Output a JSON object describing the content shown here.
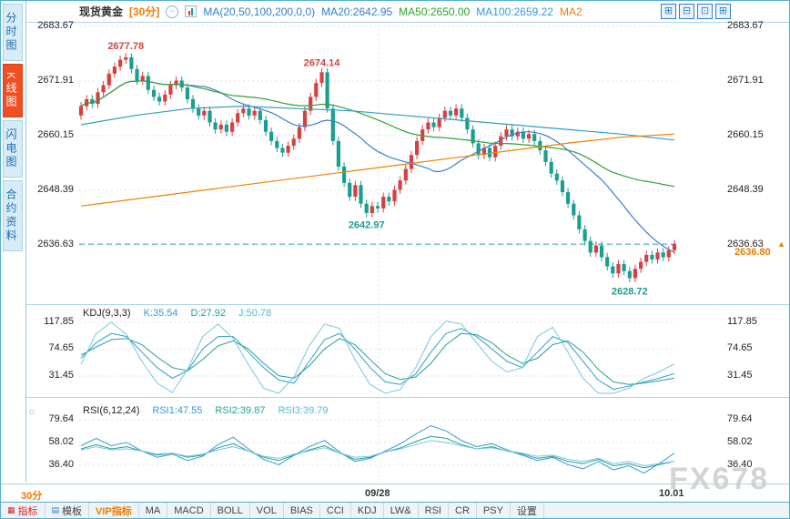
{
  "colors": {
    "up": "#d84040",
    "down": "#1b9e92",
    "ma20": "#3a7fd0",
    "ma50": "#35a035",
    "ma100": "#2e9fc0",
    "ma200": "#ef8200",
    "kdj_k": "#2f9bd6",
    "kdj_d": "#23a08e",
    "kdj_j": "#79c6de",
    "rsi1": "#2f9bd6",
    "rsi2": "#23a08e",
    "rsi3": "#79c6de",
    "current": "#f07c00"
  },
  "sidebar": {
    "items": [
      {
        "label": "分时图",
        "active": false
      },
      {
        "label": "K线图",
        "active": true
      },
      {
        "label": "闪电图",
        "active": false
      },
      {
        "label": "合约资料",
        "active": false
      }
    ]
  },
  "header": {
    "title": "现货黄金",
    "timeframe": "[30分]",
    "ma_formula": "MA(20,50,100,200,0,0)",
    "ma20": "MA20:2642.95",
    "ma50": "MA50:2650.00",
    "ma100": "MA100:2659.22",
    "ma200": "MA2"
  },
  "main_axis": {
    "left": [
      "2683.67",
      "2671.91",
      "2660.15",
      "2648.39",
      "2636.63"
    ],
    "right": [
      "2683.67",
      "2671.91",
      "2660.15",
      "2648.39",
      "2636.63"
    ],
    "current_price": "2636.80",
    "current_arrow": "▲"
  },
  "kdj_panel": {
    "title": "KDJ(9,3,3)",
    "k": "K:35.54",
    "d": "D:27.92",
    "j": "J:50.78",
    "axis": [
      "117.85",
      "74.65",
      "31.45"
    ]
  },
  "rsi_panel": {
    "title": "RSI(6,12,24)",
    "rsi1": "RSI1:47.55",
    "rsi2": "RSI2:39.87",
    "rsi3": "RSI3:39.79",
    "axis": [
      "79.64",
      "58.02",
      "36.40"
    ]
  },
  "xaxis": {
    "timeframe_badge": "30分",
    "date1": "09/28",
    "date2": "10.01"
  },
  "toolbar": {
    "items": [
      "指标",
      "模板",
      "VIP指标",
      "MA",
      "MACD",
      "BOLL",
      "VOL",
      "BIAS",
      "CCI",
      "KDJ",
      "LW&",
      "RSI",
      "CR",
      "PSY",
      "设置"
    ]
  },
  "watermark": "FX678",
  "chart_data": {
    "type": "candlestick",
    "symbol": "现货黄金",
    "interval": "30分",
    "x_labels": [
      "09/28",
      "10.01"
    ],
    "price_gridlines": [
      2683.67,
      2671.91,
      2660.15,
      2648.39,
      2636.63
    ],
    "current_price": 2636.8,
    "candles": {
      "open_first": 2664.5,
      "wick": 0.9,
      "closes": [
        2666.5,
        2668,
        2667,
        2669.5,
        2671,
        2673.5,
        2675,
        2676.5,
        2677,
        2674.5,
        2672,
        2673,
        2670,
        2668.5,
        2667.5,
        2669,
        2671,
        2672,
        2670.5,
        2668,
        2666,
        2664.5,
        2665.5,
        2663,
        2661.5,
        2662.5,
        2661,
        2663,
        2665,
        2666,
        2664.5,
        2665.5,
        2663.5,
        2661,
        2659,
        2657.5,
        2656.5,
        2658,
        2659.5,
        2662,
        2665.5,
        2668.5,
        2671.5,
        2673.8,
        2666,
        2659,
        2653.5,
        2650,
        2647,
        2649.5,
        2645.5,
        2643.5,
        2645,
        2644.5,
        2647,
        2646,
        2648.5,
        2650.5,
        2653,
        2656,
        2659,
        2661.5,
        2663,
        2662,
        2664,
        2665.5,
        2664.5,
        2666,
        2664,
        2661.5,
        2658.5,
        2656,
        2657.5,
        2655.5,
        2658,
        2660,
        2661.5,
        2660,
        2661,
        2659.5,
        2660.5,
        2659,
        2657,
        2654.5,
        2652,
        2650.5,
        2648,
        2645.5,
        2643,
        2640,
        2637.5,
        2635,
        2636.5,
        2634,
        2632,
        2630.5,
        2632.5,
        2631,
        2629.5,
        2631.5,
        2633,
        2634.5,
        2633.5,
        2635,
        2634,
        2635.5,
        2636.8
      ]
    },
    "annotations": [
      {
        "index": 8,
        "price": 2677.78,
        "text": "2677.78",
        "pos": "above",
        "color": "#d84040"
      },
      {
        "index": 43,
        "price": 2674.14,
        "text": "2674.14",
        "pos": "above",
        "color": "#d84040"
      },
      {
        "index": 51,
        "price": 2642.97,
        "text": "2642.97",
        "pos": "below",
        "color": "#1b9e92"
      },
      {
        "index": 98,
        "price": 2628.72,
        "text": "2628.72",
        "pos": "below",
        "color": "#1b9e92"
      }
    ],
    "ma100_points": [
      2662.5,
      2664.5,
      2666,
      2666.5,
      2666,
      2665.5,
      2664.5,
      2663.5,
      2662.5,
      2661.5,
      2660.5,
      2659.2
    ],
    "ma200_points": [
      2645,
      2646.5,
      2648,
      2649.5,
      2651,
      2652.5,
      2654,
      2655.5,
      2657,
      2658.5,
      2659.8,
      2660.5
    ],
    "kdj": {
      "gridlines": [
        117.85,
        74.65,
        31.45
      ],
      "k": [
        60,
        85,
        100,
        95,
        70,
        45,
        28,
        40,
        75,
        95,
        95,
        70,
        45,
        25,
        20,
        55,
        90,
        100,
        75,
        45,
        22,
        18,
        35,
        70,
        100,
        108,
        95,
        75,
        55,
        45,
        70,
        95,
        85,
        55,
        25,
        10,
        15,
        22,
        28,
        35.5
      ],
      "d": [
        65,
        78,
        90,
        92,
        82,
        62,
        45,
        40,
        58,
        80,
        88,
        75,
        52,
        32,
        28,
        48,
        75,
        92,
        82,
        58,
        35,
        26,
        30,
        52,
        82,
        100,
        98,
        85,
        65,
        52,
        60,
        82,
        88,
        70,
        42,
        22,
        18,
        20,
        24,
        28
      ],
      "j": [
        50,
        100,
        118,
        98,
        55,
        20,
        5,
        42,
        95,
        115,
        92,
        50,
        12,
        3,
        30,
        80,
        115,
        108,
        58,
        18,
        3,
        10,
        45,
        95,
        120,
        115,
        85,
        55,
        38,
        45,
        95,
        110,
        70,
        28,
        3,
        -4,
        12,
        28,
        38,
        51
      ]
    },
    "rsi": {
      "gridlines": [
        79.64,
        58.02,
        36.4
      ],
      "r1": [
        55,
        62,
        55,
        58,
        50,
        44,
        47,
        41,
        45,
        56,
        63,
        52,
        42,
        37,
        46,
        54,
        60,
        49,
        40,
        43,
        50,
        57,
        66,
        74,
        69,
        60,
        54,
        57,
        51,
        46,
        41,
        44,
        37,
        33,
        40,
        32,
        36,
        29,
        38,
        48
      ],
      "r2": [
        52,
        56,
        52,
        54,
        50,
        46,
        48,
        44,
        46,
        53,
        57,
        50,
        44,
        41,
        46,
        51,
        55,
        48,
        42,
        44,
        49,
        53,
        59,
        64,
        62,
        56,
        52,
        54,
        50,
        47,
        43,
        45,
        40,
        38,
        42,
        36,
        38,
        34,
        37,
        40
      ],
      "r3": [
        51,
        54,
        51,
        52,
        50,
        47,
        48,
        45,
        47,
        51,
        54,
        50,
        45,
        43,
        47,
        50,
        53,
        48,
        44,
        45,
        49,
        52,
        56,
        60,
        58,
        55,
        52,
        53,
        50,
        48,
        45,
        46,
        42,
        40,
        43,
        38,
        40,
        36,
        38,
        40
      ]
    }
  }
}
